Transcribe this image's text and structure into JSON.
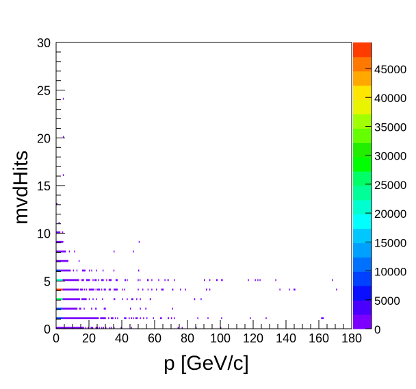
{
  "chart_data": {
    "type": "heatmap",
    "title": "",
    "xlabel": "p [GeV/c]",
    "ylabel": "mvdHits",
    "xlim": [
      0,
      180
    ],
    "ylim": [
      0,
      30
    ],
    "zlim": [
      0,
      49500
    ],
    "grid": false,
    "legend": "color-bar-right",
    "x_ticks": [
      "0",
      "20",
      "40",
      "60",
      "80",
      "100",
      "120",
      "140",
      "160",
      "180"
    ],
    "y_ticks": [
      "0",
      "5",
      "10",
      "15",
      "20",
      "25",
      "30"
    ],
    "z_ticks": [
      "0",
      "5000",
      "10000",
      "15000",
      "20000",
      "25000",
      "30000",
      "35000",
      "40000",
      "45000"
    ],
    "palette": [
      "#7b00ff",
      "#4a00ff",
      "#0a10ff",
      "#0040ff",
      "#0070ff",
      "#00a0ff",
      "#00c8ff",
      "#00ffff",
      "#00ffd0",
      "#00ff99",
      "#00ff66",
      "#00ff00",
      "#22ee00",
      "#66ff00",
      "#a0ff00",
      "#e8f400",
      "#ffe600",
      "#ffa800",
      "#ff7800",
      "#ff3c00"
    ],
    "rows": [
      {
        "hits": 0,
        "segments": [
          [
            0,
            17,
            1000
          ],
          [
            17.8,
            18.4,
            500
          ],
          [
            19.2,
            19.8,
            500
          ],
          [
            21,
            22.6,
            500
          ],
          [
            24,
            25.4,
            500
          ],
          [
            26,
            26.6,
            500
          ],
          [
            27.5,
            28.1,
            500
          ],
          [
            28.6,
            29.2,
            500
          ],
          [
            30,
            30.6,
            500
          ],
          [
            32.4,
            33,
            500
          ],
          [
            33.3,
            33.9,
            500
          ],
          [
            35,
            35.6,
            500
          ],
          [
            39.3,
            39.9,
            500
          ],
          [
            45.6,
            46.2,
            500
          ],
          [
            74,
            74.6,
            500
          ],
          [
            76.5,
            77.1,
            500
          ],
          [
            85,
            85.6,
            500
          ],
          [
            100,
            100.6,
            500
          ]
        ]
      },
      {
        "hits": 1,
        "segments": [
          [
            0,
            4,
            8000
          ],
          [
            4,
            26,
            1000
          ],
          [
            26.8,
            30.3,
            500
          ],
          [
            31.7,
            32.3,
            500
          ],
          [
            33.3,
            34.9,
            500
          ],
          [
            35.8,
            36.4,
            500
          ],
          [
            37.2,
            37.8,
            500
          ],
          [
            41.4,
            42.8,
            500
          ],
          [
            44.2,
            44.8,
            500
          ],
          [
            45.6,
            46.2,
            500
          ],
          [
            46.7,
            47.3,
            500
          ],
          [
            48.3,
            49.7,
            500
          ],
          [
            51,
            51.6,
            500
          ],
          [
            53,
            53.6,
            500
          ],
          [
            55,
            55.6,
            500
          ],
          [
            59,
            59.6,
            500
          ],
          [
            63.3,
            64.4,
            500
          ],
          [
            68,
            68.8,
            500
          ],
          [
            70,
            70.6,
            500
          ],
          [
            71.7,
            72.3,
            500
          ],
          [
            86,
            86.6,
            500
          ],
          [
            92.2,
            92.8,
            500
          ],
          [
            100.5,
            101.1,
            500
          ],
          [
            118,
            118.6,
            500
          ],
          [
            127.6,
            128.2,
            500
          ],
          [
            161.4,
            163,
            500
          ]
        ]
      },
      {
        "hits": 2,
        "segments": [
          [
            0,
            4,
            8000
          ],
          [
            4,
            13,
            1000
          ],
          [
            14,
            15.3,
            500
          ],
          [
            16.8,
            17.4,
            500
          ],
          [
            21.3,
            22,
            500
          ],
          [
            23.8,
            24.7,
            500
          ],
          [
            29,
            30.3,
            500
          ],
          [
            45,
            45.6,
            500
          ],
          [
            51,
            51.6,
            500
          ],
          [
            54.3,
            55,
            500
          ],
          [
            70.6,
            71.2,
            500
          ]
        ]
      },
      {
        "hits": 3,
        "segments": [
          [
            0,
            4,
            27000
          ],
          [
            4,
            14.6,
            1000
          ],
          [
            15.4,
            18.6,
            500
          ],
          [
            19.9,
            20.5,
            500
          ],
          [
            22.2,
            22.8,
            500
          ],
          [
            24.2,
            24.8,
            500
          ],
          [
            28,
            28.6,
            500
          ],
          [
            35,
            36,
            500
          ],
          [
            40,
            40.6,
            500
          ],
          [
            43,
            43.6,
            500
          ],
          [
            45.8,
            47,
            500
          ],
          [
            48.8,
            49.4,
            500
          ],
          [
            51,
            51.6,
            500
          ],
          [
            57,
            57.8,
            500
          ],
          [
            84,
            84.7,
            500
          ],
          [
            88,
            88.6,
            500
          ]
        ]
      },
      {
        "hits": 4,
        "segments": [
          [
            0,
            4,
            48000
          ],
          [
            4,
            13.9,
            1000
          ],
          [
            14.6,
            16.4,
            500
          ],
          [
            17,
            17.6,
            500
          ],
          [
            18.2,
            18.8,
            500
          ],
          [
            19.9,
            23.3,
            500
          ],
          [
            24,
            24.6,
            500
          ],
          [
            25,
            26.8,
            500
          ],
          [
            27.5,
            28.1,
            500
          ],
          [
            29,
            30.3,
            500
          ],
          [
            32,
            33.3,
            500
          ],
          [
            35,
            37.5,
            500
          ],
          [
            40,
            40.6,
            500
          ],
          [
            41.4,
            42,
            500
          ],
          [
            49.7,
            50.3,
            500
          ],
          [
            52.5,
            53.1,
            500
          ],
          [
            55.7,
            56.3,
            500
          ],
          [
            58,
            58.6,
            500
          ],
          [
            60.8,
            61.4,
            500
          ],
          [
            64,
            65.5,
            500
          ],
          [
            70.6,
            71.4,
            500
          ],
          [
            75.4,
            76,
            500
          ],
          [
            78.5,
            79.1,
            500
          ],
          [
            91.2,
            92,
            500
          ],
          [
            93.3,
            93.9,
            500
          ],
          [
            136,
            136.6,
            500
          ],
          [
            141.8,
            142.4,
            500
          ],
          [
            144.6,
            145.7,
            500
          ],
          [
            170.5,
            171.1,
            500
          ]
        ]
      },
      {
        "hits": 5,
        "segments": [
          [
            0,
            4,
            22000
          ],
          [
            4,
            14,
            1000
          ],
          [
            15.4,
            17,
            500
          ],
          [
            18.3,
            20.6,
            500
          ],
          [
            22.2,
            22.8,
            500
          ],
          [
            23.3,
            24.7,
            500
          ],
          [
            25.4,
            26,
            500
          ],
          [
            27.5,
            29,
            500
          ],
          [
            30.5,
            31.1,
            500
          ],
          [
            32,
            33.8,
            500
          ],
          [
            36.2,
            37.5,
            500
          ],
          [
            41.7,
            42.5,
            500
          ],
          [
            43,
            43.6,
            500
          ],
          [
            49.7,
            50.3,
            500
          ],
          [
            50.8,
            51.4,
            500
          ],
          [
            55.4,
            56.4,
            500
          ],
          [
            58,
            58.6,
            500
          ],
          [
            62.2,
            62.8,
            500
          ],
          [
            66,
            66.6,
            500
          ],
          [
            67.8,
            68.6,
            500
          ],
          [
            71.7,
            72.3,
            500
          ],
          [
            90,
            90.7,
            500
          ],
          [
            93.3,
            93.9,
            500
          ],
          [
            97.5,
            98.4,
            500
          ],
          [
            100.5,
            101.5,
            500
          ],
          [
            116.8,
            117.4,
            500
          ],
          [
            121,
            121.6,
            500
          ],
          [
            122.6,
            123.2,
            500
          ],
          [
            123.9,
            124.5,
            500
          ],
          [
            133.5,
            134.1,
            500
          ],
          [
            168,
            168.6,
            500
          ]
        ]
      },
      {
        "hits": 6,
        "segments": [
          [
            0,
            2.6,
            8000
          ],
          [
            2.6,
            8.9,
            1000
          ],
          [
            10.3,
            10.9,
            500
          ],
          [
            12.4,
            13,
            500
          ],
          [
            15.8,
            17.9,
            500
          ],
          [
            20,
            20.6,
            500
          ],
          [
            21.4,
            22,
            500
          ],
          [
            24.2,
            24.8,
            500
          ],
          [
            28.3,
            28.9,
            500
          ],
          [
            34.9,
            35.5,
            500
          ],
          [
            50,
            50.6,
            500
          ]
        ]
      },
      {
        "hits": 7,
        "segments": [
          [
            0,
            7.5,
            1000
          ],
          [
            13.7,
            14.3,
            500
          ]
        ]
      },
      {
        "hits": 8,
        "segments": [
          [
            0,
            6,
            1000
          ],
          [
            7.8,
            8.4,
            500
          ],
          [
            11,
            11.6,
            500
          ],
          [
            35,
            35.6,
            500
          ],
          [
            46.7,
            47.3,
            500
          ]
        ]
      },
      {
        "hits": 9,
        "segments": [
          [
            0,
            4.4,
            1000
          ],
          [
            50.3,
            50.9,
            500
          ]
        ]
      },
      {
        "hits": 10,
        "segments": [
          [
            0,
            2.6,
            1000
          ],
          [
            3.6,
            4.3,
            500
          ]
        ]
      },
      {
        "hits": 11,
        "segments": [
          [
            1.5,
            2.1,
            500
          ]
        ]
      },
      {
        "hits": 13,
        "segments": [
          [
            0.2,
            0.8,
            500
          ]
        ]
      },
      {
        "hits": 16,
        "segments": [
          [
            4.1,
            4.7,
            500
          ]
        ]
      },
      {
        "hits": 20,
        "segments": [
          [
            4.1,
            4.7,
            500
          ]
        ]
      },
      {
        "hits": 24,
        "segments": [
          [
            4.1,
            4.7,
            500
          ]
        ]
      }
    ]
  }
}
